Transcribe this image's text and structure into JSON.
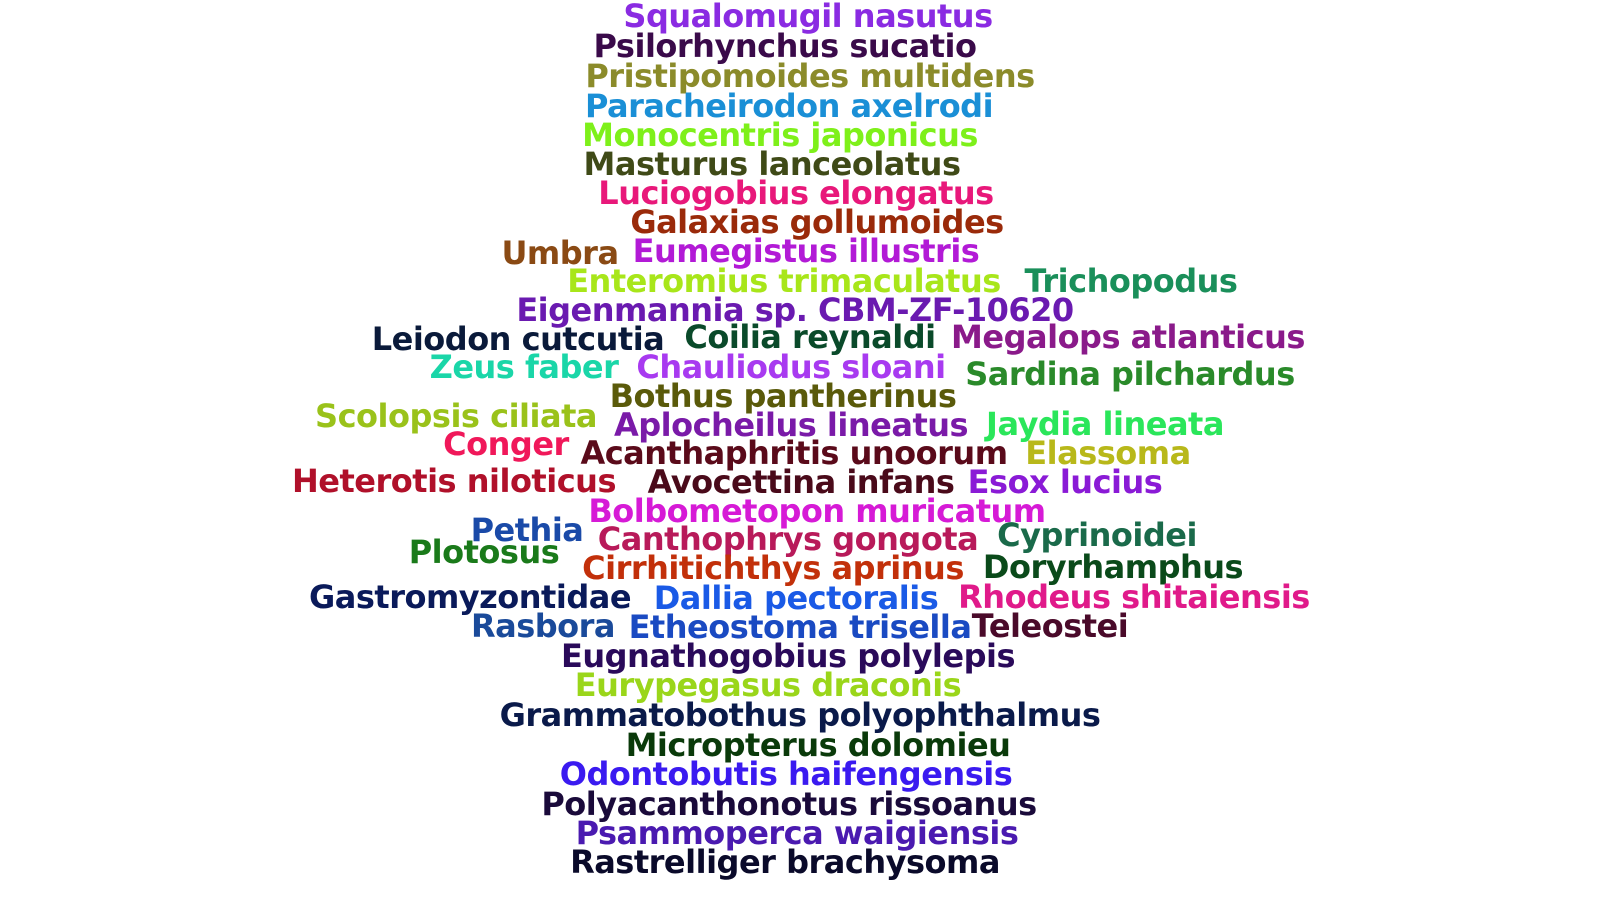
{
  "words": [
    {
      "text": "Squalomugil nasutus",
      "color": "#8a2be2"
    },
    {
      "text": "Psilorhynchus sucatio",
      "color": "#3a0a4a"
    },
    {
      "text": "Pristipomoides multidens",
      "color": "#8b8b2a"
    },
    {
      "text": "Paracheirodon axelrodi",
      "color": "#1a8fd6"
    },
    {
      "text": "Monocentris japonicus",
      "color": "#7ef01a"
    },
    {
      "text": "Masturus lanceolatus",
      "color": "#3f4a17"
    },
    {
      "text": "Luciogobius elongatus",
      "color": "#e8187a"
    },
    {
      "text": "Galaxias gollumoides",
      "color": "#9a2a0a"
    },
    {
      "text": "Umbra",
      "color": "#8a4a14"
    },
    {
      "text": "Eumegistus illustris",
      "color": "#b21ad6"
    },
    {
      "text": "Enteromius trimaculatus",
      "color": "#a8e61a"
    },
    {
      "text": "Trichopodus",
      "color": "#1a8f5a"
    },
    {
      "text": "Eigenmannia sp. CBM-ZF-10620",
      "color": "#6a1ab0"
    },
    {
      "text": "Leiodon cutcutia",
      "color": "#0a1a3a"
    },
    {
      "text": "Coilia reynaldi",
      "color": "#0a4a2a"
    },
    {
      "text": "Megalops atlanticus",
      "color": "#8a1a8a"
    },
    {
      "text": "Zeus faber",
      "color": "#1ad6a8"
    },
    {
      "text": "Chauliodus sloani",
      "color": "#a83af0"
    },
    {
      "text": "Sardina pilchardus",
      "color": "#2a8a2a"
    },
    {
      "text": "Bothus pantherinus",
      "color": "#5a5a0a"
    },
    {
      "text": "Scolopsis ciliata",
      "color": "#9ac21a"
    },
    {
      "text": "Aplocheilus lineatus",
      "color": "#7a1aa8"
    },
    {
      "text": "Jaydia lineata",
      "color": "#2ae65a"
    },
    {
      "text": "Conger",
      "color": "#f0185a"
    },
    {
      "text": "Acanthaphritis unoorum",
      "color": "#5a0a1a"
    },
    {
      "text": "Elassoma",
      "color": "#b8b81a"
    },
    {
      "text": "Heterotis niloticus",
      "color": "#b0102a"
    },
    {
      "text": "Avocettina infans",
      "color": "#4a0a1a"
    },
    {
      "text": "Esox lucius",
      "color": "#8a1ad6"
    },
    {
      "text": "Bolbometopon muricatum",
      "color": "#d61ad6"
    },
    {
      "text": "Pethia",
      "color": "#1a4aa8"
    },
    {
      "text": "Canthophrys gongota",
      "color": "#b81a5a"
    },
    {
      "text": "Cyprinoidei",
      "color": "#1a6a4a"
    },
    {
      "text": "Plotosus",
      "color": "#1a7a1a"
    },
    {
      "text": "Cirrhitichthys aprinus",
      "color": "#c2300a"
    },
    {
      "text": "Doryrhamphus",
      "color": "#0a4a1a"
    },
    {
      "text": "Gastromyzontidae",
      "color": "#0a1a5a"
    },
    {
      "text": "Dallia pectoralis",
      "color": "#1a5ae6"
    },
    {
      "text": "Rhodeus shitaiensis",
      "color": "#e01a8a"
    },
    {
      "text": "Rasbora",
      "color": "#1a4a9a"
    },
    {
      "text": "Etheostoma trisella",
      "color": "#1a4ac2"
    },
    {
      "text": "Teleostei",
      "color": "#4a0a2a"
    },
    {
      "text": "Eugnathogobius polylepis",
      "color": "#2a0a5a"
    },
    {
      "text": "Eurypegasus draconis",
      "color": "#9ad61a"
    },
    {
      "text": "Grammatobothus polyophthalmus",
      "color": "#0a1a4a"
    },
    {
      "text": "Micropterus dolomieu",
      "color": "#0a3a0a"
    },
    {
      "text": "Odontobutis haifengensis",
      "color": "#3a1af0"
    },
    {
      "text": "Polyacanthonotus rissoanus",
      "color": "#1a0a3a"
    },
    {
      "text": "Psammoperca waigiensis",
      "color": "#4a1ab0"
    },
    {
      "text": "Rastrelliger brachysoma",
      "color": "#0a0a2a"
    }
  ]
}
